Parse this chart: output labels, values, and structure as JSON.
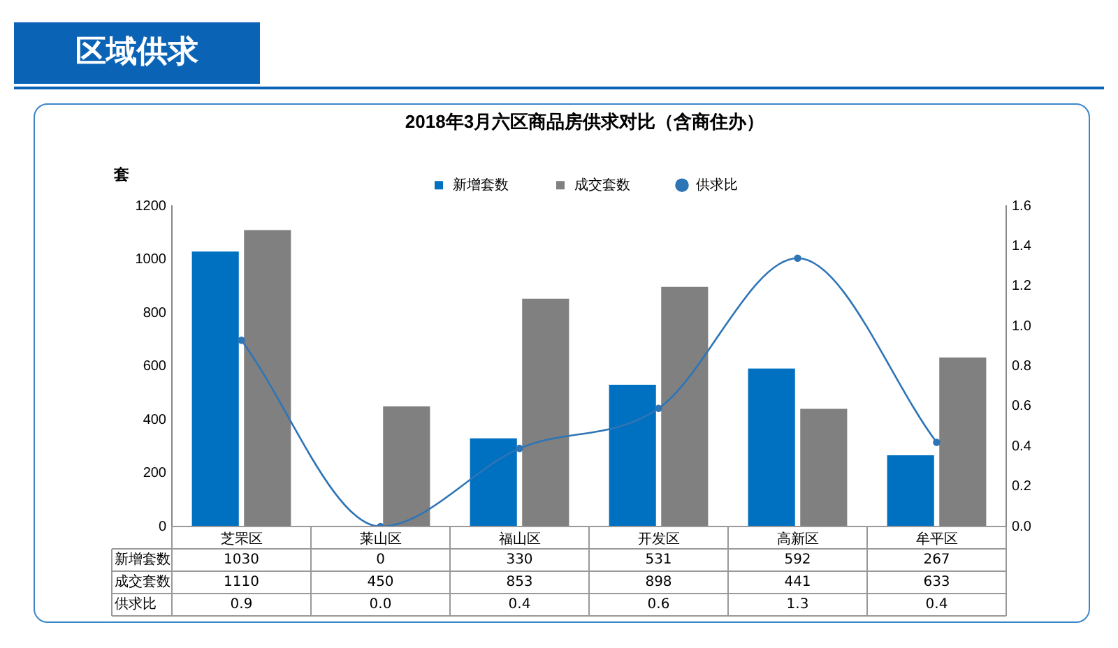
{
  "chart_data": {
    "type": "bar",
    "title": "2018年3月六区商品房供求对比（含商住办）",
    "ylabel": "套",
    "annotations": [
      "区域供求"
    ],
    "categories": [
      "芝罘区",
      "莱山区",
      "福山区",
      "开发区",
      "高新区",
      "牟平区"
    ],
    "series": [
      {
        "name": "新增套数",
        "color": "#0070c0",
        "values": [
          1030,
          0,
          330,
          531,
          592,
          267
        ],
        "value_labels": [
          "1030",
          "0",
          "330",
          "531",
          "592",
          "267"
        ]
      },
      {
        "name": "成交套数",
        "color": "#808080",
        "values": [
          1110,
          450,
          853,
          898,
          441,
          633
        ],
        "value_labels": [
          "1110",
          "450",
          "853",
          "898",
          "441",
          "633"
        ]
      },
      {
        "name": "供求比",
        "type": "line",
        "axis": "y2",
        "color": "#2e75b6",
        "values": [
          0.93,
          0,
          0.39,
          0.59,
          1.34,
          0.42
        ],
        "value_labels": [
          "0.9",
          "0.0",
          "0.4",
          "0.6",
          "1.3",
          "0.4"
        ]
      }
    ],
    "ylim": [
      0,
      1200
    ],
    "yticks": [
      0,
      200,
      400,
      600,
      800,
      1000,
      1200
    ],
    "y2lim": [
      0,
      1.6
    ],
    "y2ticks": [
      {
        "value": 0,
        "label": "0.0"
      },
      {
        "value": 0.2,
        "label": "0.2"
      },
      {
        "value": 0.4,
        "label": "0.4"
      },
      {
        "value": 0.6,
        "label": "0.6"
      },
      {
        "value": 0.8,
        "label": "0.8"
      },
      {
        "value": 1,
        "label": "1.0"
      },
      {
        "value": 1.2,
        "label": "1.2"
      },
      {
        "value": 1.4,
        "label": "1.4"
      },
      {
        "value": 1.6,
        "label": "1.6"
      }
    ],
    "grid": false,
    "legend": "top",
    "marker": "circle",
    "line_style": "solid"
  }
}
